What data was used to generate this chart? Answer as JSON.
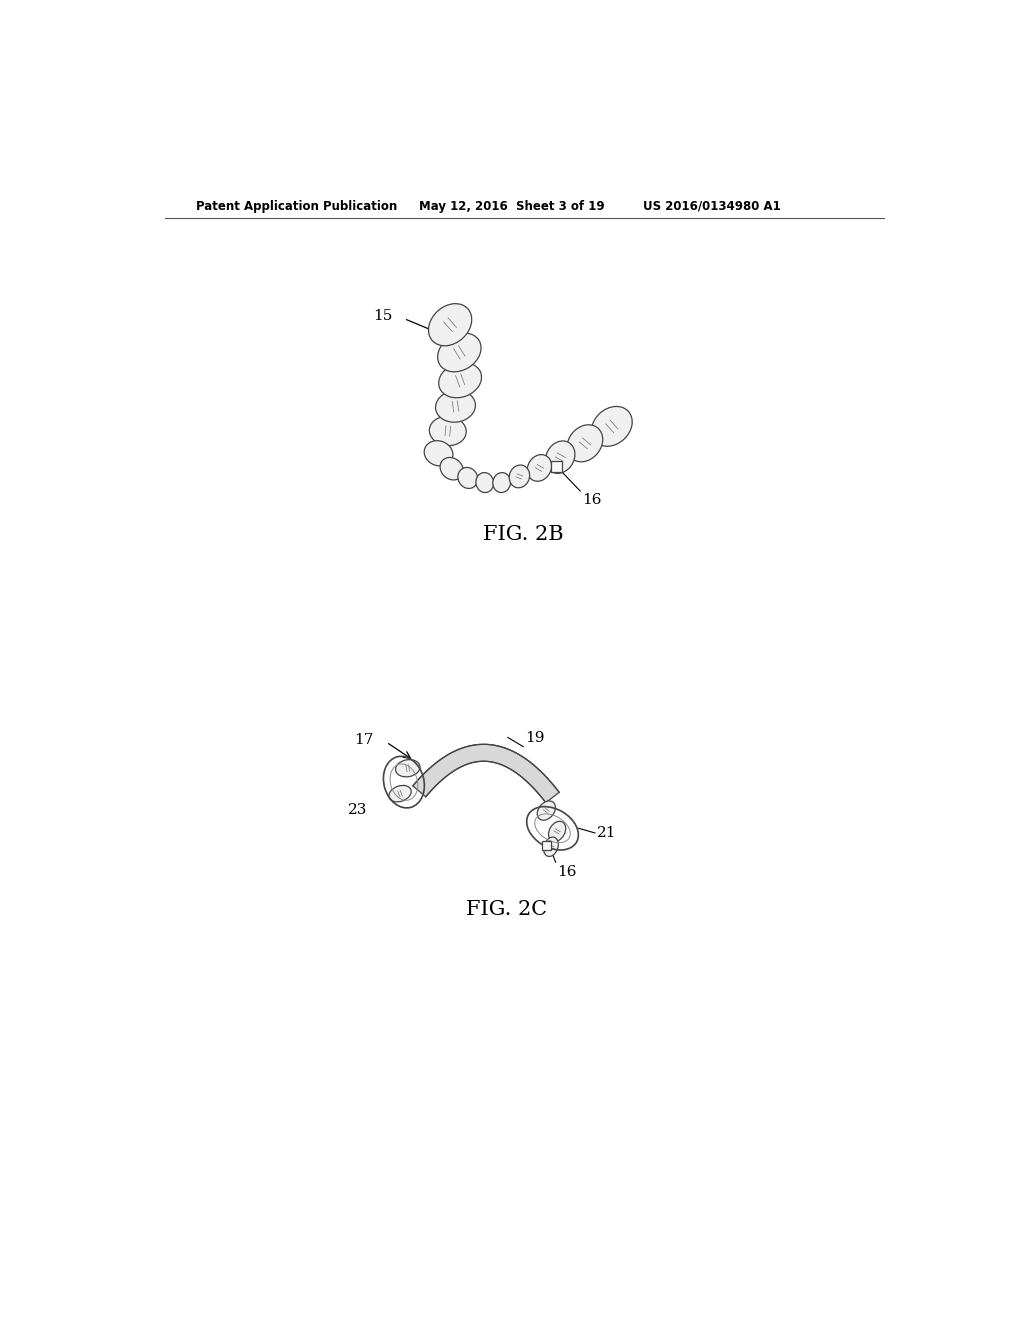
{
  "background_color": "#ffffff",
  "header_left": "Patent Application Publication",
  "header_mid": "May 12, 2016  Sheet 3 of 19",
  "header_right": "US 2016/0134980 A1",
  "fig2b_label": "FIG. 2B",
  "fig2c_label": "FIG. 2C",
  "label_15_text": "15",
  "label_16_text": "16",
  "label_17_text": "17",
  "label_19_text": "19",
  "label_21_text": "21",
  "label_23_text": "23",
  "line_color": "#333333",
  "text_color": "#000000",
  "tooth_face": "#f0f0f0",
  "tooth_edge": "#444444"
}
